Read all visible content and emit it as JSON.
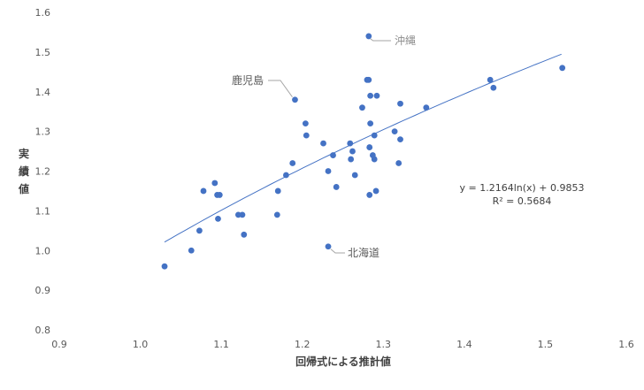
{
  "chart_data": {
    "type": "scatter",
    "title": "",
    "xlabel": "回帰式による推計値",
    "ylabel": "実績値",
    "xlim": [
      0.9,
      1.6
    ],
    "ylim": [
      0.8,
      1.6
    ],
    "xticks": [
      0.9,
      1.0,
      1.1,
      1.2,
      1.3,
      1.4,
      1.5,
      1.6
    ],
    "yticks": [
      0.8,
      0.9,
      1.0,
      1.1,
      1.2,
      1.3,
      1.4,
      1.5,
      1.6
    ],
    "xtick_labels": [
      "0.9",
      "1.0",
      "1.1",
      "1.2",
      "1.3",
      "1.4",
      "1.5",
      "1.6"
    ],
    "ytick_labels": [
      "0.8",
      "0.9",
      "1.0",
      "1.1",
      "1.2",
      "1.3",
      "1.4",
      "1.5",
      "1.6"
    ],
    "grid": false,
    "point_color": "#4472C4",
    "trendline_color": "#4472C4",
    "points": [
      {
        "x": 1.03,
        "y": 0.96
      },
      {
        "x": 1.063,
        "y": 1.0
      },
      {
        "x": 1.073,
        "y": 1.05
      },
      {
        "x": 1.078,
        "y": 1.15
      },
      {
        "x": 1.092,
        "y": 1.17
      },
      {
        "x": 1.095,
        "y": 1.14
      },
      {
        "x": 1.098,
        "y": 1.14
      },
      {
        "x": 1.096,
        "y": 1.08
      },
      {
        "x": 1.121,
        "y": 1.09
      },
      {
        "x": 1.126,
        "y": 1.09
      },
      {
        "x": 1.128,
        "y": 1.04
      },
      {
        "x": 1.169,
        "y": 1.09
      },
      {
        "x": 1.17,
        "y": 1.15
      },
      {
        "x": 1.18,
        "y": 1.19
      },
      {
        "x": 1.188,
        "y": 1.22
      },
      {
        "x": 1.191,
        "y": 1.38
      },
      {
        "x": 1.204,
        "y": 1.32
      },
      {
        "x": 1.205,
        "y": 1.29
      },
      {
        "x": 1.226,
        "y": 1.27
      },
      {
        "x": 1.232,
        "y": 1.2
      },
      {
        "x": 1.232,
        "y": 1.01
      },
      {
        "x": 1.238,
        "y": 1.24
      },
      {
        "x": 1.242,
        "y": 1.16
      },
      {
        "x": 1.259,
        "y": 1.27
      },
      {
        "x": 1.26,
        "y": 1.23
      },
      {
        "x": 1.262,
        "y": 1.25
      },
      {
        "x": 1.265,
        "y": 1.19
      },
      {
        "x": 1.274,
        "y": 1.36
      },
      {
        "x": 1.28,
        "y": 1.43
      },
      {
        "x": 1.282,
        "y": 1.43
      },
      {
        "x": 1.282,
        "y": 1.54
      },
      {
        "x": 1.283,
        "y": 1.14
      },
      {
        "x": 1.283,
        "y": 1.26
      },
      {
        "x": 1.284,
        "y": 1.32
      },
      {
        "x": 1.284,
        "y": 1.39
      },
      {
        "x": 1.287,
        "y": 1.24
      },
      {
        "x": 1.289,
        "y": 1.23
      },
      {
        "x": 1.289,
        "y": 1.29
      },
      {
        "x": 1.291,
        "y": 1.15
      },
      {
        "x": 1.292,
        "y": 1.39
      },
      {
        "x": 1.314,
        "y": 1.3
      },
      {
        "x": 1.319,
        "y": 1.22
      },
      {
        "x": 1.321,
        "y": 1.37
      },
      {
        "x": 1.321,
        "y": 1.28
      },
      {
        "x": 1.353,
        "y": 1.36
      },
      {
        "x": 1.432,
        "y": 1.43
      },
      {
        "x": 1.436,
        "y": 1.41
      },
      {
        "x": 1.521,
        "y": 1.46
      }
    ],
    "trendline": {
      "type": "logarithmic",
      "a": 1.2164,
      "b": 0.9853,
      "x_range": [
        1.03,
        1.52
      ]
    },
    "equation_label": "y = 1.2164ln(x) + 0.9853",
    "r2_label": "R² = 0.5684",
    "annotations": [
      {
        "text": "沖縄",
        "x": 1.282,
        "y": 1.54
      },
      {
        "text": "鹿児島",
        "x": 1.191,
        "y": 1.38
      },
      {
        "text": "北海道",
        "x": 1.232,
        "y": 1.01
      }
    ]
  }
}
